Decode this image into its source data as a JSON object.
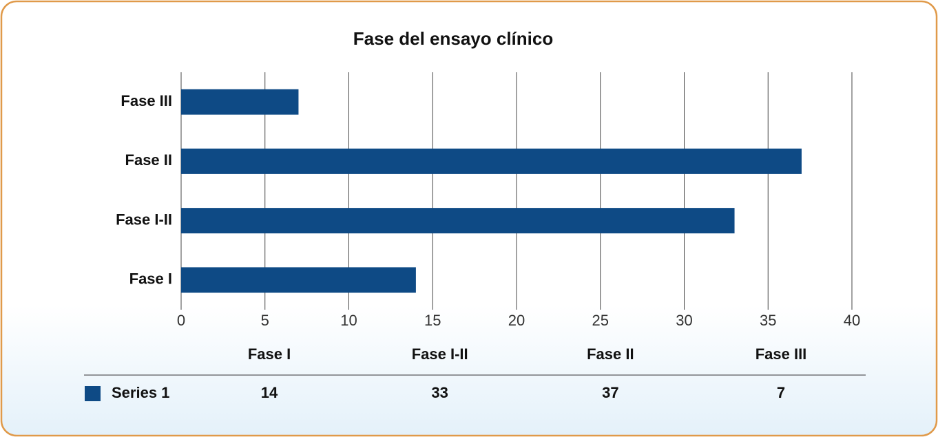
{
  "chart_data": {
    "type": "bar",
    "orientation": "horizontal",
    "title": "Fase del ensayo clínico",
    "categories": [
      "Fase I",
      "Fase I-II",
      "Fase II",
      "Fase III"
    ],
    "series": [
      {
        "name": "Series 1",
        "color": "#0e4a85",
        "values": [
          14,
          33,
          37,
          7
        ]
      }
    ],
    "xlim": [
      0,
      40
    ],
    "xticks": [
      0,
      5,
      10,
      15,
      20,
      25,
      30,
      35,
      40
    ],
    "grid": true,
    "data_table": true
  }
}
